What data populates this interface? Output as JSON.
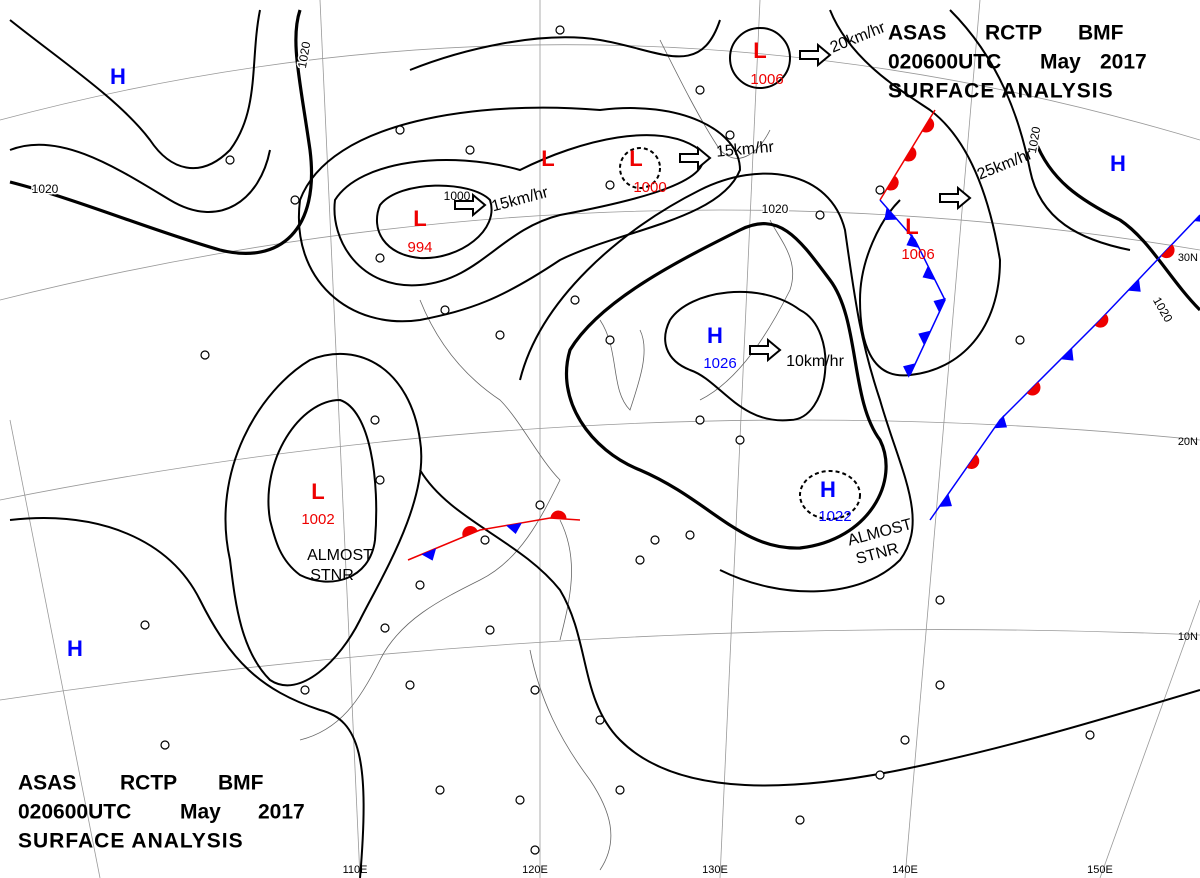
{
  "header": {
    "line1": [
      "ASAS",
      "RCTP",
      "BMF"
    ],
    "line2": [
      "020600UTC",
      "May",
      "2017"
    ],
    "line3": "SURFACE ANALYSIS"
  },
  "centers": [
    {
      "symbol": "L",
      "pressure": "1006"
    },
    {
      "symbol": "L",
      "pressure": "1000"
    },
    {
      "symbol": "L",
      "pressure": "994"
    },
    {
      "symbol": "L"
    },
    {
      "symbol": "L",
      "pressure": "1006"
    },
    {
      "symbol": "L",
      "pressure": "1002"
    },
    {
      "symbol": "H",
      "pressure": "1026"
    },
    {
      "symbol": "H",
      "pressure": "1022"
    },
    {
      "symbol": "H"
    },
    {
      "symbol": "H"
    },
    {
      "symbol": "H"
    }
  ],
  "isobar_labels": [
    "1020",
    "1020",
    "1020",
    "1020",
    "1020",
    "1000"
  ],
  "motions": [
    "20km/hr",
    "15km/hr",
    "15km/hr",
    "25km/hr",
    "10km/hr"
  ],
  "notes": [
    [
      "ALMOST",
      "STNR"
    ],
    [
      "ALMOST",
      "STNR"
    ]
  ],
  "latitudes": [
    "30N",
    "20N",
    "10N"
  ],
  "longitudes": [
    "110E",
    "120E",
    "130E",
    "140E",
    "150E"
  ]
}
